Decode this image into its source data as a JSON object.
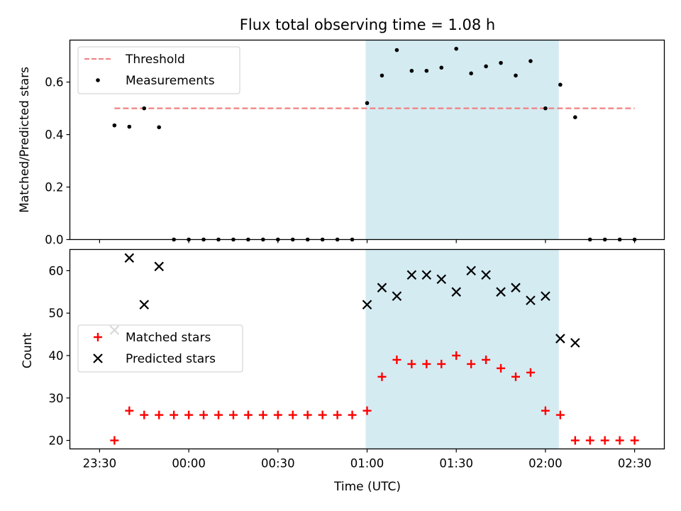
{
  "chart_data": [
    {
      "type": "scatter",
      "title": "Flux total observing time = 1.08 h",
      "xlabel": "",
      "ylabel": "Matched/Predicted stars",
      "ylim": [
        0,
        0.76
      ],
      "xlim": [
        "23:20",
        "02:40"
      ],
      "yticks": [
        "0.0",
        "0.2",
        "0.4",
        "0.6"
      ],
      "highlight_range": [
        "00:59.5",
        "02:04.5"
      ],
      "highlight_color": "#add8e6",
      "threshold": {
        "name": "Threshold",
        "value": 0.5,
        "x_start": "23:35",
        "x_end": "02:30",
        "color": "#f08080",
        "style": "dashed"
      },
      "legend": {
        "placement": "upper-left",
        "entries": [
          "Threshold",
          "Measurements"
        ]
      },
      "series": [
        {
          "name": "Measurements",
          "marker": "dot",
          "color": "#000000",
          "x": [
            "23:35",
            "23:40",
            "23:45",
            "23:50",
            "23:55",
            "00:00",
            "00:05",
            "00:10",
            "00:15",
            "00:20",
            "00:25",
            "00:30",
            "00:35",
            "00:40",
            "00:45",
            "00:50",
            "00:55",
            "01:00",
            "01:05",
            "01:10",
            "01:15",
            "01:20",
            "01:25",
            "01:30",
            "01:35",
            "01:40",
            "01:45",
            "01:50",
            "01:55",
            "02:00",
            "02:05",
            "02:10",
            "02:15",
            "02:20",
            "02:25",
            "02:30"
          ],
          "values": [
            0.435,
            0.43,
            0.5,
            0.428,
            0,
            0,
            0,
            0,
            0,
            0,
            0,
            0,
            0,
            0,
            0,
            0,
            0,
            0.52,
            0.625,
            0.722,
            0.643,
            0.643,
            0.655,
            0.727,
            0.633,
            0.66,
            0.673,
            0.625,
            0.68,
            0.5,
            0.59,
            0.466,
            0,
            0,
            0,
            0
          ]
        }
      ]
    },
    {
      "type": "scatter",
      "xlabel": "Time (UTC)",
      "ylabel": "Count",
      "ylim": [
        18,
        65
      ],
      "xlim": [
        "23:20",
        "02:40"
      ],
      "yticks": [
        "20",
        "30",
        "40",
        "50",
        "60"
      ],
      "xticks": [
        "23:30",
        "00:00",
        "00:30",
        "01:00",
        "01:30",
        "02:00",
        "02:30"
      ],
      "highlight_range": [
        "00:59.5",
        "02:04.5"
      ],
      "highlight_color": "#add8e6",
      "legend": {
        "placement": "center-left",
        "entries": [
          "Matched stars",
          "Predicted stars"
        ]
      },
      "series": [
        {
          "name": "Matched stars",
          "marker": "plus",
          "color": "#ff0000",
          "x": [
            "23:35",
            "23:40",
            "23:45",
            "23:50",
            "23:55",
            "00:00",
            "00:05",
            "00:10",
            "00:15",
            "00:20",
            "00:25",
            "00:30",
            "00:35",
            "00:40",
            "00:45",
            "00:50",
            "00:55",
            "01:00",
            "01:05",
            "01:10",
            "01:15",
            "01:20",
            "01:25",
            "01:30",
            "01:35",
            "01:40",
            "01:45",
            "01:50",
            "01:55",
            "02:00",
            "02:05",
            "02:10",
            "02:15",
            "02:20",
            "02:25",
            "02:30"
          ],
          "values": [
            20,
            27,
            26,
            26,
            26,
            26,
            26,
            26,
            26,
            26,
            26,
            26,
            26,
            26,
            26,
            26,
            26,
            27,
            35,
            39,
            38,
            38,
            38,
            40,
            38,
            39,
            37,
            35,
            36,
            27,
            26,
            20,
            20,
            20,
            20,
            20
          ]
        },
        {
          "name": "Predicted stars",
          "marker": "x",
          "color": "#000000",
          "x": [
            "23:35",
            "23:40",
            "23:45",
            "23:50",
            "01:00",
            "01:05",
            "01:10",
            "01:15",
            "01:20",
            "01:25",
            "01:30",
            "01:35",
            "01:40",
            "01:45",
            "01:50",
            "01:55",
            "02:00",
            "02:05",
            "02:10"
          ],
          "values": [
            46,
            63,
            52,
            61,
            52,
            56,
            54,
            59,
            59,
            58,
            55,
            60,
            59,
            55,
            56,
            53,
            54,
            44,
            43
          ]
        }
      ]
    }
  ]
}
